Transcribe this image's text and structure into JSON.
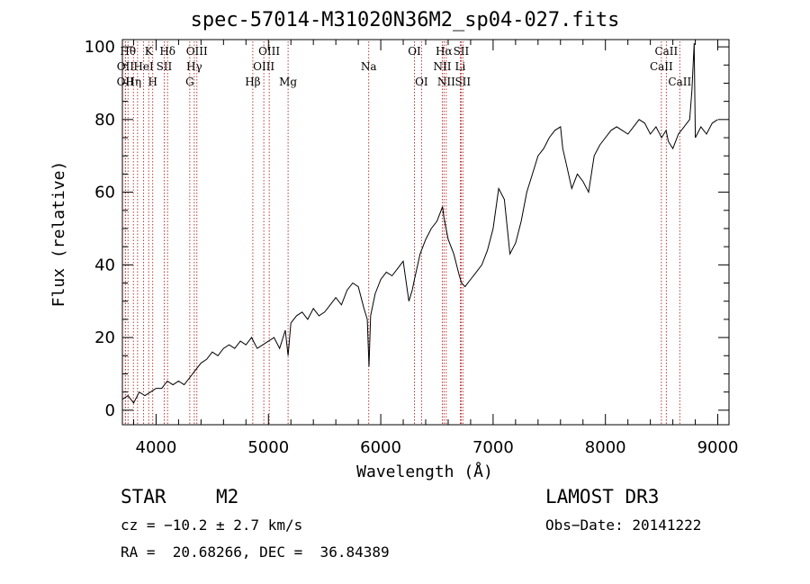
{
  "chart_data": {
    "type": "line",
    "title": "spec-57014-M31020N36M2_sp04-027.fits",
    "xlabel": "Wavelength (Å)",
    "ylabel": "Flux (relative)",
    "xlim": [
      3700,
      9100
    ],
    "ylim": [
      -4,
      102
    ],
    "xticks": [
      4000,
      5000,
      6000,
      7000,
      8000,
      9000
    ],
    "yticks": [
      0,
      20,
      40,
      60,
      80,
      100
    ],
    "x_minor_step": 200,
    "y_minor_step": 5,
    "series": [
      {
        "name": "flux",
        "x": [
          3700,
          3750,
          3800,
          3850,
          3900,
          3950,
          4000,
          4050,
          4100,
          4150,
          4200,
          4250,
          4300,
          4350,
          4400,
          4450,
          4500,
          4550,
          4600,
          4650,
          4700,
          4750,
          4800,
          4850,
          4900,
          4950,
          5000,
          5050,
          5100,
          5150,
          5175,
          5200,
          5250,
          5300,
          5350,
          5400,
          5450,
          5500,
          5550,
          5600,
          5650,
          5700,
          5750,
          5800,
          5850,
          5880,
          5895,
          5910,
          5950,
          6000,
          6050,
          6100,
          6150,
          6200,
          6250,
          6280,
          6300,
          6350,
          6400,
          6450,
          6500,
          6550,
          6563,
          6600,
          6650,
          6700,
          6720,
          6750,
          6800,
          6850,
          6900,
          6950,
          7000,
          7050,
          7100,
          7150,
          7200,
          7250,
          7300,
          7350,
          7400,
          7450,
          7500,
          7550,
          7600,
          7620,
          7650,
          7700,
          7750,
          7800,
          7850,
          7900,
          7950,
          8000,
          8050,
          8100,
          8150,
          8200,
          8250,
          8300,
          8350,
          8400,
          8450,
          8500,
          8540,
          8560,
          8600,
          8650,
          8700,
          8750,
          8770,
          8790,
          8800,
          8850,
          8900,
          8950,
          9000
        ],
        "y": [
          3,
          4,
          2,
          5,
          4,
          5,
          6,
          6,
          8,
          7,
          8,
          7,
          9,
          11,
          13,
          14,
          16,
          15,
          17,
          18,
          17,
          19,
          18,
          20,
          17,
          18,
          19,
          20,
          17,
          22,
          15,
          24,
          26,
          27,
          25,
          28,
          26,
          27,
          29,
          31,
          29,
          33,
          35,
          34,
          28,
          25,
          12,
          26,
          32,
          36,
          38,
          37,
          39,
          41,
          30,
          33,
          36,
          43,
          47,
          50,
          52,
          56,
          53,
          47,
          43,
          37,
          35,
          34,
          36,
          38,
          40,
          44,
          50,
          61,
          58,
          43,
          46,
          52,
          60,
          65,
          70,
          72,
          75,
          77,
          78,
          72,
          68,
          61,
          65,
          63,
          60,
          70,
          73,
          75,
          77,
          78,
          77,
          76,
          78,
          80,
          79,
          76,
          78,
          75,
          77,
          74,
          72,
          76,
          78,
          80,
          88,
          101,
          75,
          78,
          76,
          79,
          80
        ]
      }
    ],
    "lines": [
      {
        "wl": 3750,
        "label": "Hθ",
        "row": 0
      },
      {
        "wl": 3727,
        "label": "OII",
        "row": 1
      },
      {
        "wl": 3726,
        "label": "OII",
        "row": 2
      },
      {
        "wl": 3798,
        "label": "Hη",
        "row": 2
      },
      {
        "wl": 3835,
        "label": "",
        "row": 0
      },
      {
        "wl": 3889,
        "label": "HeI",
        "row": 1
      },
      {
        "wl": 3934,
        "label": "K",
        "row": 0
      },
      {
        "wl": 3970,
        "label": "H",
        "row": 2
      },
      {
        "wl": 4072,
        "label": "SII",
        "row": 1
      },
      {
        "wl": 4102,
        "label": "Hδ",
        "row": 0
      },
      {
        "wl": 4300,
        "label": "G",
        "row": 2
      },
      {
        "wl": 4340,
        "label": "Hγ",
        "row": 1
      },
      {
        "wl": 4363,
        "label": "OIII",
        "row": 0
      },
      {
        "wl": 4861,
        "label": "Hβ",
        "row": 2
      },
      {
        "wl": 4959,
        "label": "OIII",
        "row": 1
      },
      {
        "wl": 5007,
        "label": "OIII",
        "row": 0
      },
      {
        "wl": 5175,
        "label": "Mg",
        "row": 2
      },
      {
        "wl": 5893,
        "label": "Na",
        "row": 1
      },
      {
        "wl": 6300,
        "label": "OI",
        "row": 0
      },
      {
        "wl": 6363,
        "label": "OI",
        "row": 2
      },
      {
        "wl": 6548,
        "label": "NII",
        "row": 1
      },
      {
        "wl": 6563,
        "label": "Hα",
        "row": 0
      },
      {
        "wl": 6583,
        "label": "NII",
        "row": 2
      },
      {
        "wl": 6708,
        "label": "Li",
        "row": 1
      },
      {
        "wl": 6716,
        "label": "SII",
        "row": 0
      },
      {
        "wl": 6731,
        "label": "SII",
        "row": 2
      },
      {
        "wl": 8498,
        "label": "CaII",
        "row": 1
      },
      {
        "wl": 8542,
        "label": "CaII",
        "row": 0
      },
      {
        "wl": 8662,
        "label": "CaII",
        "row": 2
      }
    ]
  },
  "info": {
    "object_class": "STAR",
    "subclass": "M2",
    "survey": "LAMOST DR3",
    "cz": "cz = −10.2 ± 2.7 km/s",
    "obs_date": "Obs−Date: 20141222",
    "coords": "RA =  20.68266, DEC =  36.84389"
  }
}
